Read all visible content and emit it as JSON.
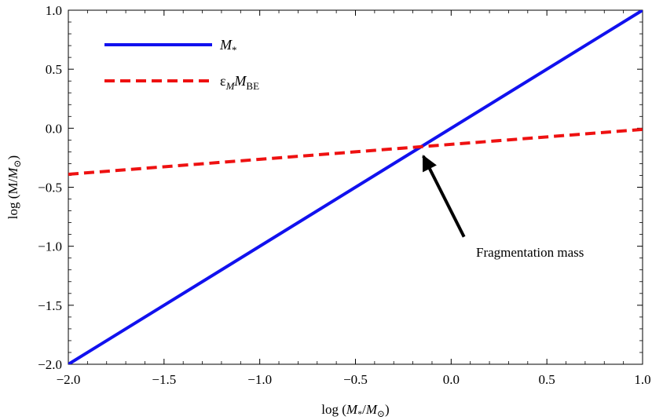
{
  "chart_data": {
    "type": "line",
    "xlabel": "log (M*/M⊙)",
    "ylabel": "log (M/M⊙)",
    "xlim": [
      -2.0,
      1.0
    ],
    "ylim": [
      -2.0,
      1.0
    ],
    "xticks": [
      "−2.0",
      "−1.5",
      "−1.0",
      "−0.5",
      "0.0",
      "0.5",
      "1.0"
    ],
    "yticks": [
      "−2.0",
      "−1.5",
      "−1.0",
      "−0.5",
      "0.0",
      "0.5",
      "1.0"
    ],
    "xtick_values": [
      -2.0,
      -1.5,
      -1.0,
      -0.5,
      0.0,
      0.5,
      1.0
    ],
    "ytick_values": [
      -2.0,
      -1.5,
      -1.0,
      -0.5,
      0.0,
      0.5,
      1.0
    ],
    "grid": false,
    "legend_position": "top-left",
    "series": [
      {
        "name": "M*",
        "color": "#1111ee",
        "style": "solid",
        "x": [
          -2.0,
          1.0
        ],
        "y": [
          -2.0,
          1.0
        ]
      },
      {
        "name": "εM MBE",
        "color": "#ee1111",
        "style": "dashed",
        "x": [
          -2.0,
          1.0
        ],
        "y": [
          -0.39,
          -0.01
        ]
      }
    ],
    "annotation": {
      "text": "Fragmentation mass",
      "point": [
        -0.17,
        -0.17
      ],
      "tail": [
        0.1,
        -1.0
      ]
    }
  }
}
